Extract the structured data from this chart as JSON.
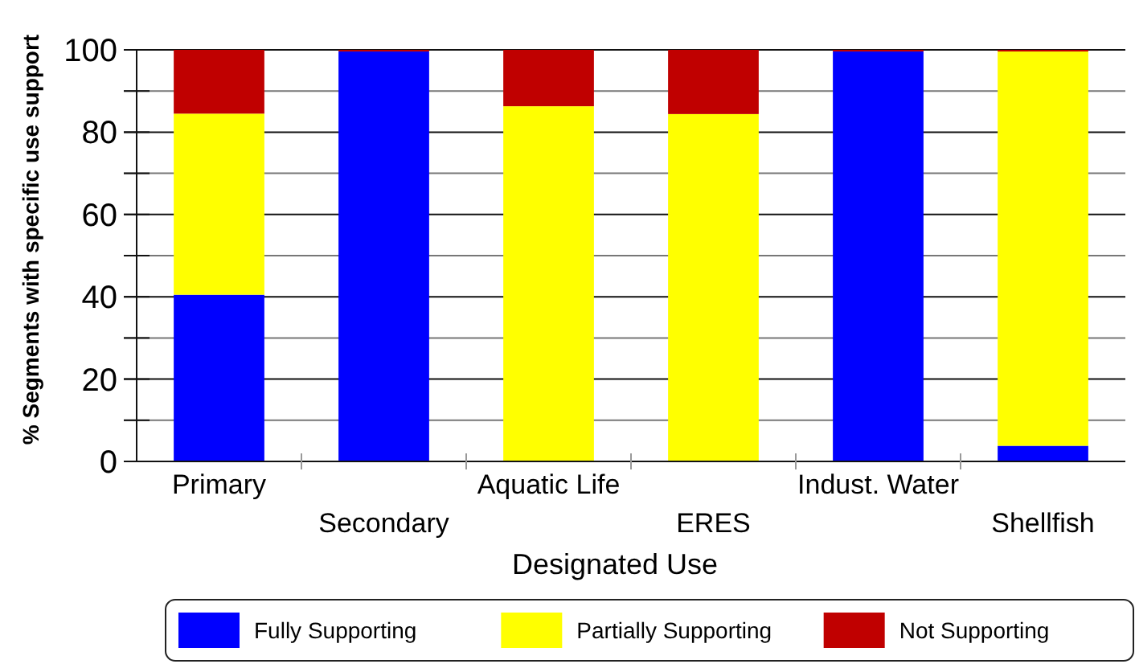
{
  "chart_data": {
    "type": "bar",
    "stacked": true,
    "xlabel": "Designated Use",
    "ylabel": "% Segments with specific use support",
    "categories": [
      "Primary",
      "Secondary",
      "Aquatic Life",
      "ERES",
      "Indust. Water",
      "Shellfish"
    ],
    "series": [
      {
        "name": "Fully Supporting",
        "color": "#0000ff",
        "values": [
          40.5,
          99.6,
          0,
          0,
          99.6,
          3.8
        ]
      },
      {
        "name": "Partially Supporting",
        "color": "#ffff00",
        "values": [
          44,
          0,
          86.3,
          84.4,
          0,
          95.8
        ]
      },
      {
        "name": "Not Supporting",
        "color": "#c00000",
        "values": [
          15.5,
          0.4,
          13.7,
          15.6,
          0.4,
          0.4
        ]
      }
    ],
    "ylim": [
      0,
      100
    ],
    "yticks": [
      0,
      {
        "value": 10,
        "label": null
      },
      20,
      {
        "value": 30,
        "label": null
      },
      40,
      {
        "value": 50,
        "label": null
      },
      60,
      {
        "value": 70,
        "label": null
      },
      80,
      {
        "value": 90,
        "label": null
      },
      100
    ],
    "grid": "y",
    "legend": "bottom"
  }
}
